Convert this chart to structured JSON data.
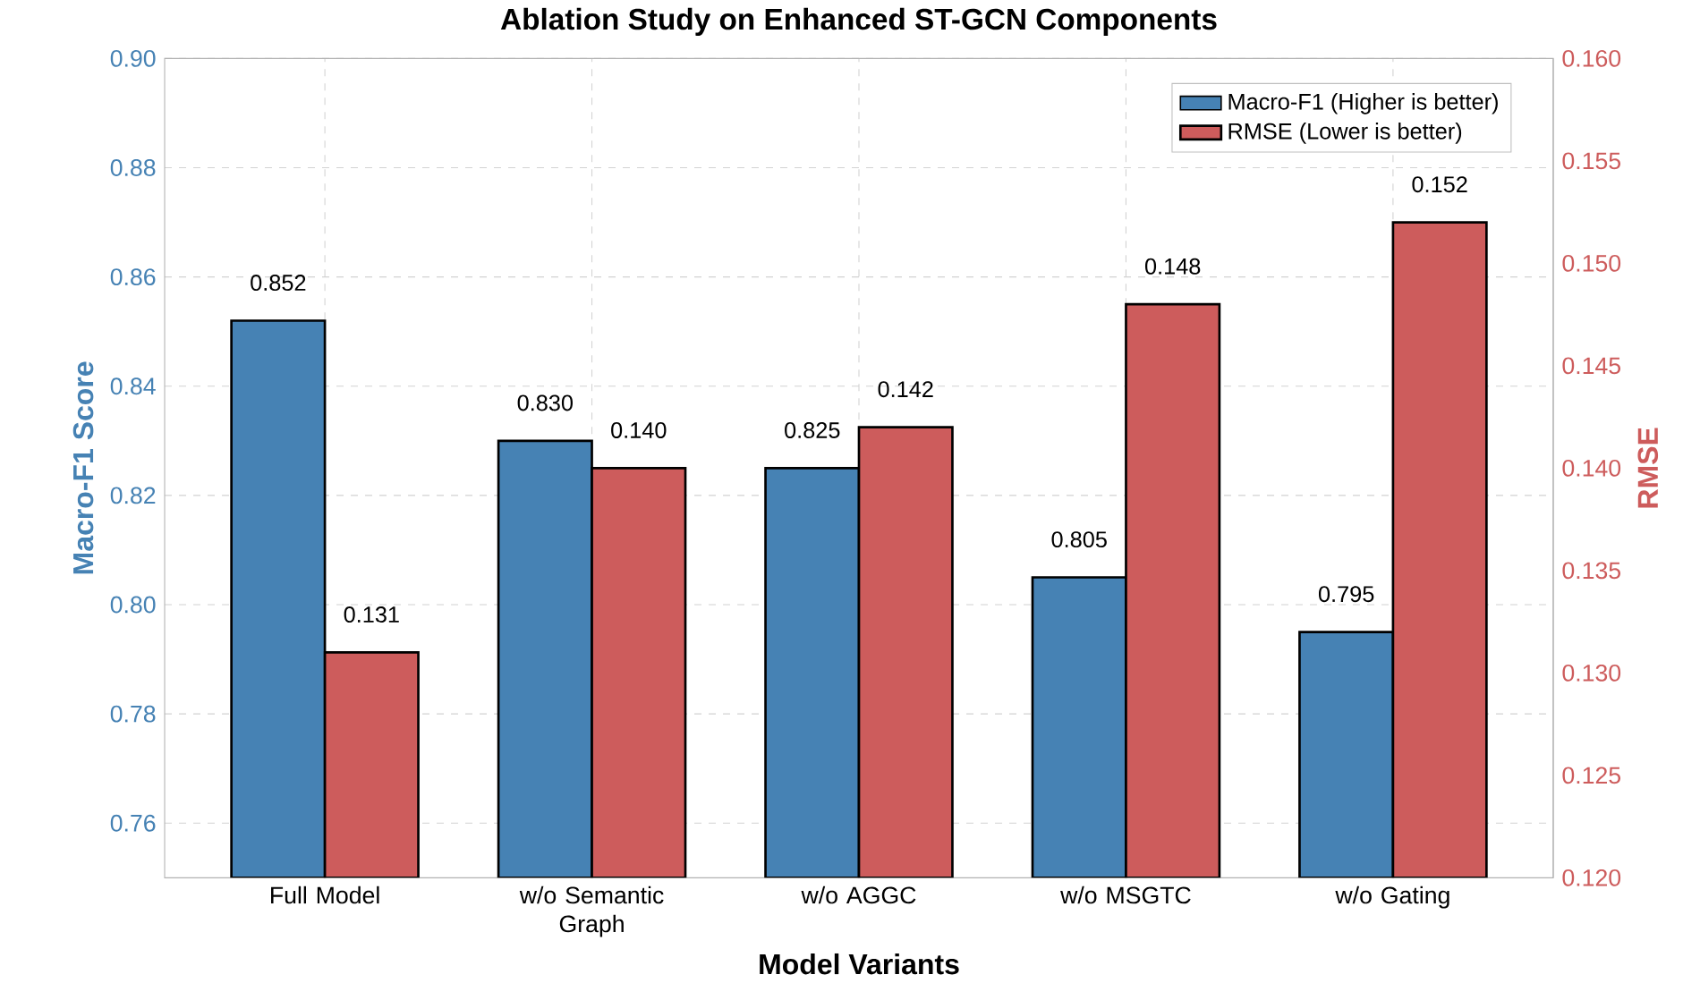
{
  "chart_data": {
    "type": "bar",
    "title": "Ablation Study on Enhanced ST-GCN Components",
    "xlabel": "Model Variants",
    "ylabel": "Macro-F1 Score",
    "y2label": "RMSE",
    "categories": [
      "Full Model",
      "w/o Semantic Graph",
      "w/o AGGC",
      "w/o MSGTC",
      "w/o Gating"
    ],
    "series": [
      {
        "name": "Macro-F1 (Higher is better)",
        "color": "#4682b4",
        "values": [
          0.852,
          0.83,
          0.825,
          0.805,
          0.795
        ],
        "value_labels": [
          "0.852",
          "0.830",
          "0.825",
          "0.805",
          "0.795"
        ]
      },
      {
        "name": "RMSE (Lower is better)",
        "color": "#cd5c5c",
        "axis": "y2",
        "values": [
          0.131,
          0.14,
          0.142,
          0.148,
          0.152
        ],
        "value_labels": [
          "0.131",
          "0.140",
          "0.142",
          "0.148",
          "0.152"
        ]
      }
    ],
    "ylim": [
      0.75,
      0.9
    ],
    "yticks": [
      {
        "value": 0.76,
        "label": "0.76"
      },
      {
        "value": 0.78,
        "label": "0.78"
      },
      {
        "value": 0.8,
        "label": "0.80"
      },
      {
        "value": 0.82,
        "label": "0.82"
      },
      {
        "value": 0.84,
        "label": "0.84"
      },
      {
        "value": 0.86,
        "label": "0.86"
      },
      {
        "value": 0.88,
        "label": "0.88"
      },
      {
        "value": 0.9,
        "label": "0.90"
      }
    ],
    "y2lim": [
      0.12,
      0.16
    ],
    "y2ticks": [
      {
        "value": 0.12,
        "label": "0.120"
      },
      {
        "value": 0.125,
        "label": "0.125"
      },
      {
        "value": 0.13,
        "label": "0.130"
      },
      {
        "value": 0.135,
        "label": "0.135"
      },
      {
        "value": 0.14,
        "label": "0.140"
      },
      {
        "value": 0.145,
        "label": "0.145"
      },
      {
        "value": 0.15,
        "label": "0.150"
      },
      {
        "value": 0.155,
        "label": "0.155"
      },
      {
        "value": 0.16,
        "label": "0.160"
      }
    ],
    "grid": true,
    "legend": "top right"
  }
}
